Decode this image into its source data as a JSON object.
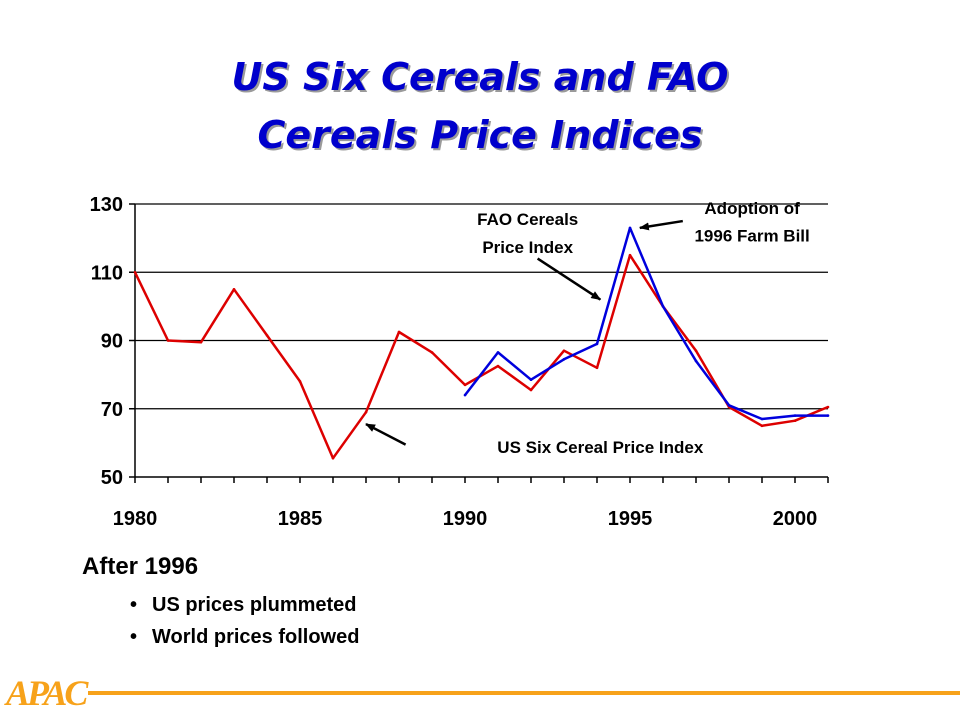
{
  "slide": {
    "title_line1": "US Six Cereals and FAO",
    "title_line2": "Cereals Price Indices",
    "notes_heading": "After 1996",
    "bullets": [
      "US prices plummeted",
      "World prices followed"
    ],
    "logo_text": "APAC"
  },
  "colors": {
    "title": "#0000cc",
    "us_series": "#dd0000",
    "fao_series": "#0000dd",
    "accent": "#f7a21a"
  },
  "chart_data": {
    "type": "line",
    "title": "",
    "xlabel": "",
    "ylabel": "",
    "xlim": [
      1980,
      2001
    ],
    "ylim": [
      50,
      130
    ],
    "x_ticks": [
      1980,
      1985,
      1990,
      1995,
      2000
    ],
    "y_ticks": [
      50,
      70,
      90,
      110,
      130
    ],
    "grid": "horizontal",
    "legend": "none",
    "series": [
      {
        "key": "us",
        "color": "#dd0000",
        "points": [
          [
            1980,
            110
          ],
          [
            1981,
            90
          ],
          [
            1982,
            89.5
          ],
          [
            1983,
            105
          ],
          [
            1984,
            91.5
          ],
          [
            1985,
            78
          ],
          [
            1986,
            55.5
          ],
          [
            1987,
            69
          ],
          [
            1988,
            92.5
          ],
          [
            1989,
            86.5
          ],
          [
            1990,
            77
          ],
          [
            1991,
            82.5
          ],
          [
            1992,
            75.5
          ],
          [
            1993,
            87
          ],
          [
            1994,
            82
          ],
          [
            1995,
            115
          ],
          [
            1996,
            100
          ],
          [
            1997,
            87
          ],
          [
            1998,
            70.5
          ],
          [
            1999,
            65
          ],
          [
            2000,
            66.5
          ],
          [
            2001,
            70.5
          ]
        ]
      },
      {
        "key": "fao",
        "color": "#0000dd",
        "points": [
          [
            1990,
            74
          ],
          [
            1991,
            86.5
          ],
          [
            1992,
            78.5
          ],
          [
            1993,
            84.5
          ],
          [
            1994,
            89
          ],
          [
            1995,
            123
          ],
          [
            1996,
            100
          ],
          [
            1997,
            84
          ],
          [
            1998,
            71
          ],
          [
            1999,
            67
          ],
          [
            2000,
            68
          ],
          [
            2001,
            68
          ]
        ]
      }
    ],
    "annotations": [
      {
        "key": "fao",
        "lines": [
          "FAO Cereals",
          "Price Index"
        ],
        "text_x": 1991.9,
        "text_y": 123.8,
        "line_step": 8.1,
        "arrow_from": [
          1992.2,
          114
        ],
        "arrow_to": [
          1994.1,
          102
        ]
      },
      {
        "key": "farm-bill",
        "lines": [
          "Adoption of",
          "1996 Farm Bill"
        ],
        "text_x": 1998.7,
        "text_y": 127.1,
        "line_step": 8.1,
        "arrow_from": [
          1996.6,
          125
        ],
        "arrow_to": [
          1995.3,
          123
        ]
      },
      {
        "key": "us",
        "lines": [
          "US Six Cereal Price Index"
        ],
        "text_x": 1994.1,
        "text_y": 57.1,
        "line_step": 8.1,
        "arrow_from": [
          1988.2,
          59.5
        ],
        "arrow_to": [
          1987,
          65.5
        ]
      }
    ]
  }
}
